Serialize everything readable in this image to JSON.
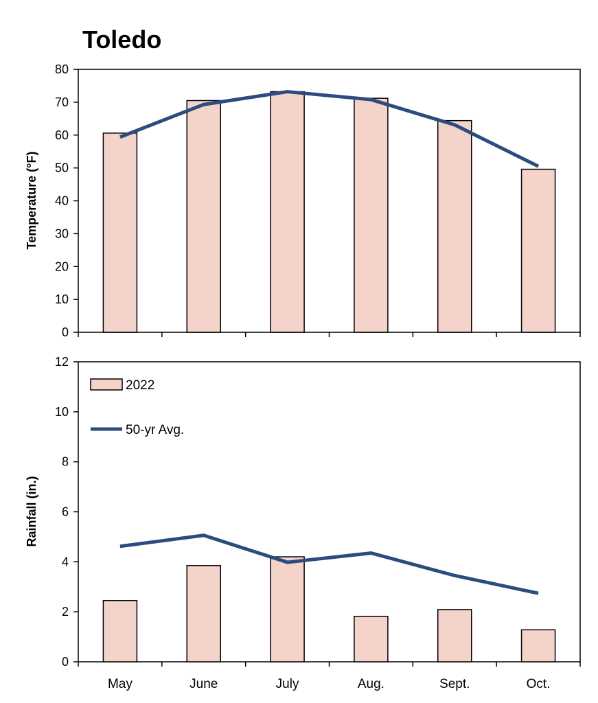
{
  "title": "Toledo",
  "colors": {
    "bar_fill": "#f4d3cb",
    "bar_stroke": "#000000",
    "line": "#2b4c7e",
    "frame": "#000000"
  },
  "chart_data": [
    {
      "type": "bar",
      "categories": [
        "May",
        "June",
        "July",
        "Aug.",
        "Sept.",
        "Oct."
      ],
      "ylabel": "Temperature (°F)",
      "ylim": [
        0,
        80
      ],
      "yticks": [
        0,
        10,
        20,
        30,
        40,
        50,
        60,
        70,
        80
      ],
      "series": [
        {
          "name": "2022",
          "type": "bar",
          "values": [
            60.6,
            70.5,
            73.2,
            71.2,
            64.4,
            49.6
          ]
        },
        {
          "name": "50-yr Avg.",
          "type": "line",
          "values": [
            59.4,
            69.3,
            73.2,
            70.8,
            63.1,
            50.5
          ]
        }
      ]
    },
    {
      "type": "bar",
      "categories": [
        "May",
        "June",
        "July",
        "Aug.",
        "Sept.",
        "Oct."
      ],
      "ylabel": "Rainfall (in.)",
      "ylim": [
        0,
        12
      ],
      "yticks": [
        0,
        2,
        4,
        6,
        8,
        10,
        12
      ],
      "legend_position": "top-left",
      "series": [
        {
          "name": "2022",
          "type": "bar",
          "values": [
            2.45,
            3.85,
            4.2,
            1.82,
            2.09,
            1.28
          ]
        },
        {
          "name": "50-yr Avg.",
          "type": "line",
          "values": [
            4.62,
            5.06,
            3.98,
            4.35,
            3.45,
            2.74
          ]
        }
      ]
    }
  ]
}
